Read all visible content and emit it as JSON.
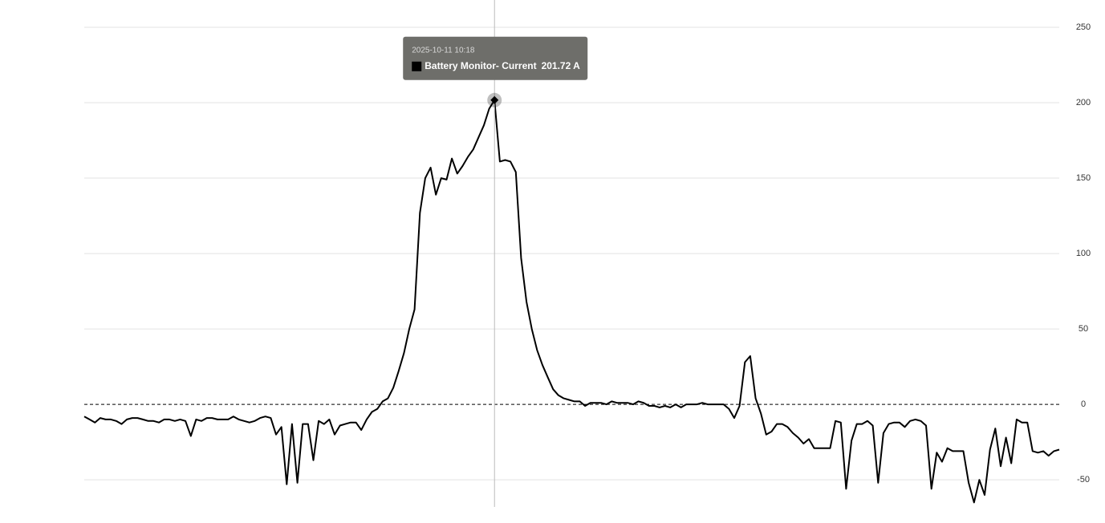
{
  "chart_data": {
    "type": "line",
    "series": [
      {
        "name": "Battery Monitor- Current",
        "color": "#000000",
        "values": [
          -8,
          -10,
          -12,
          -9,
          -10,
          -10,
          -11,
          -13,
          -10,
          -9,
          -9,
          -10,
          -11,
          -11,
          -12,
          -10,
          -10,
          -11,
          -10,
          -11,
          -21,
          -10,
          -11,
          -9,
          -9,
          -10,
          -10,
          -10,
          -8,
          -10,
          -11,
          -12,
          -11,
          -9,
          -8,
          -9,
          -20,
          -15,
          -53,
          -13,
          -52,
          -13,
          -13,
          -37,
          -11,
          -13,
          -10,
          -20,
          -14,
          -13,
          -12,
          -12,
          -17,
          -10,
          -5,
          -3,
          2,
          4,
          11,
          22,
          34,
          50,
          63,
          127,
          150,
          157,
          139,
          150,
          149,
          163,
          153,
          158,
          164,
          169,
          177,
          185,
          196,
          201.72,
          161,
          162,
          161,
          154,
          97,
          68,
          50,
          36,
          26,
          18,
          10,
          6,
          4,
          3,
          2,
          2,
          -1,
          1,
          1,
          1,
          0,
          2,
          1,
          1,
          1,
          0,
          2,
          1,
          -1,
          -1,
          -2,
          -1,
          -2,
          0,
          -2,
          0,
          0,
          0,
          1,
          0,
          0,
          0,
          0,
          -3,
          -9,
          -1,
          28,
          32,
          4,
          -6,
          -20,
          -18,
          -13,
          -13,
          -15,
          -19,
          -22,
          -26,
          -23,
          -29,
          -29,
          -29,
          -29,
          -11,
          -12,
          -56,
          -24,
          -13,
          -13,
          -11,
          -14,
          -52,
          -19,
          -13,
          -12,
          -12,
          -15,
          -11,
          -10,
          -11,
          -14,
          -56,
          -32,
          -38,
          -29,
          -31,
          -31,
          -31,
          -52,
          -65,
          -50,
          -60,
          -30,
          -16,
          -41,
          -22,
          -39,
          -10,
          -12,
          -12,
          -31,
          -32,
          -31,
          -34,
          -31,
          -30
        ]
      }
    ],
    "ylim": [
      -68,
      250
    ],
    "yticks": [
      250,
      200,
      150,
      100,
      50,
      0,
      -50
    ],
    "grid": true,
    "zero_line": true,
    "tooltip": {
      "title": "2025-10-11 10:18",
      "value": 201.72,
      "label": "201.72 A"
    }
  }
}
